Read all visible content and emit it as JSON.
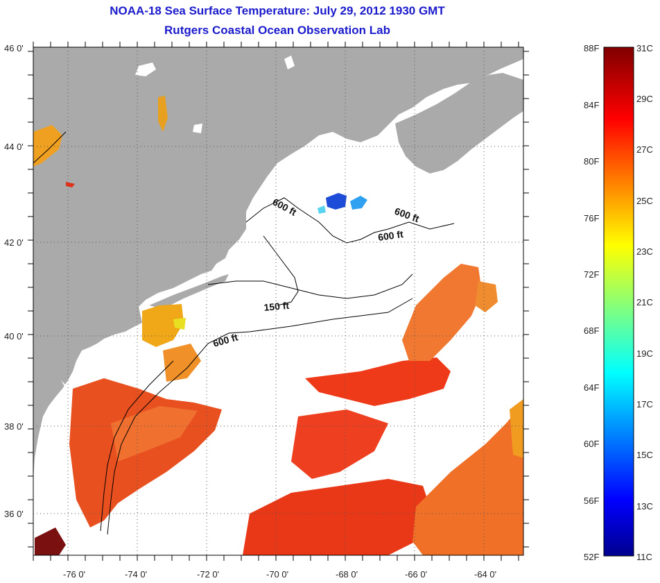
{
  "header": {
    "title": "NOAA-18 Sea Surface Temperature:  July 29, 2012 1930 GMT",
    "subtitle": "Rutgers Coastal Ocean Observation Lab"
  },
  "map": {
    "lat_labels": [
      "46 0'",
      "44 0'",
      "42 0'",
      "40 0'",
      "38 0'",
      "36 0'"
    ],
    "lon_labels": [
      "-76 0'",
      "-74 0'",
      "-72 0'",
      "-70 0'",
      "-68 0'",
      "-66 0'",
      "-64 0'"
    ],
    "contour_labels": [
      "600 ft",
      "600 ft",
      "600 ft",
      "150 ft",
      "600 ft"
    ],
    "colors": {
      "land": "#aaaaaa",
      "no_data": "#ffffff"
    }
  },
  "colorbar": {
    "fahrenheit_labels": [
      "88F",
      "84F",
      "80F",
      "76F",
      "72F",
      "68F",
      "64F",
      "60F",
      "56F",
      "52F"
    ],
    "celsius_labels": [
      "31C",
      "29C",
      "27C",
      "25C",
      "23C",
      "21C",
      "19C",
      "17C",
      "15C",
      "13C",
      "11C"
    ]
  }
}
